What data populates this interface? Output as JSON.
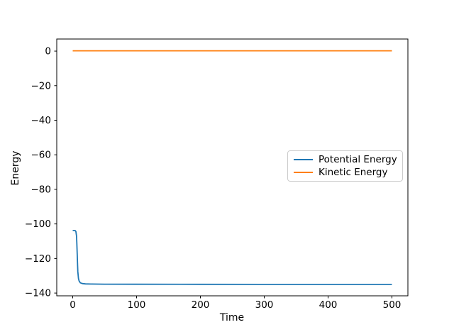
{
  "figure": {
    "background": "#ffffff",
    "title": ""
  },
  "chart_data": {
    "type": "line",
    "title": "",
    "xlabel": "Time",
    "ylabel": "Energy",
    "xlim": [
      -25,
      525
    ],
    "ylim": [
      -141.6,
      7.0
    ],
    "xticks": [
      0,
      100,
      200,
      300,
      400,
      500
    ],
    "yticks": [
      0,
      -20,
      -40,
      -60,
      -80,
      -100,
      -120,
      -140
    ],
    "grid": false,
    "legend": {
      "position": "center-right",
      "border_color": "#cccccc",
      "background": "#ffffff",
      "entries": [
        "Potential Energy",
        "Kinetic Energy"
      ]
    },
    "axis_color": "#000000",
    "series": [
      {
        "name": "Potential Energy",
        "color": "#1f77b4",
        "points": [
          [
            0,
            -103.8
          ],
          [
            2,
            -103.8
          ],
          [
            4,
            -103.9
          ],
          [
            5,
            -104.4
          ],
          [
            6,
            -107.0
          ],
          [
            6.5,
            -111.0
          ],
          [
            7,
            -117.0
          ],
          [
            7.5,
            -123.0
          ],
          [
            8,
            -127.5
          ],
          [
            9,
            -131.5
          ],
          [
            10,
            -133.0
          ],
          [
            12,
            -134.1
          ],
          [
            15,
            -134.5
          ],
          [
            20,
            -134.7
          ],
          [
            30,
            -134.8
          ],
          [
            50,
            -134.85
          ],
          [
            100,
            -134.9
          ],
          [
            200,
            -134.95
          ],
          [
            300,
            -135.0
          ],
          [
            400,
            -135.0
          ],
          [
            500,
            -135.0
          ]
        ]
      },
      {
        "name": "Kinetic Energy",
        "color": "#ff7f0e",
        "points": [
          [
            0,
            0.2
          ],
          [
            500,
            0.2
          ]
        ]
      }
    ]
  }
}
